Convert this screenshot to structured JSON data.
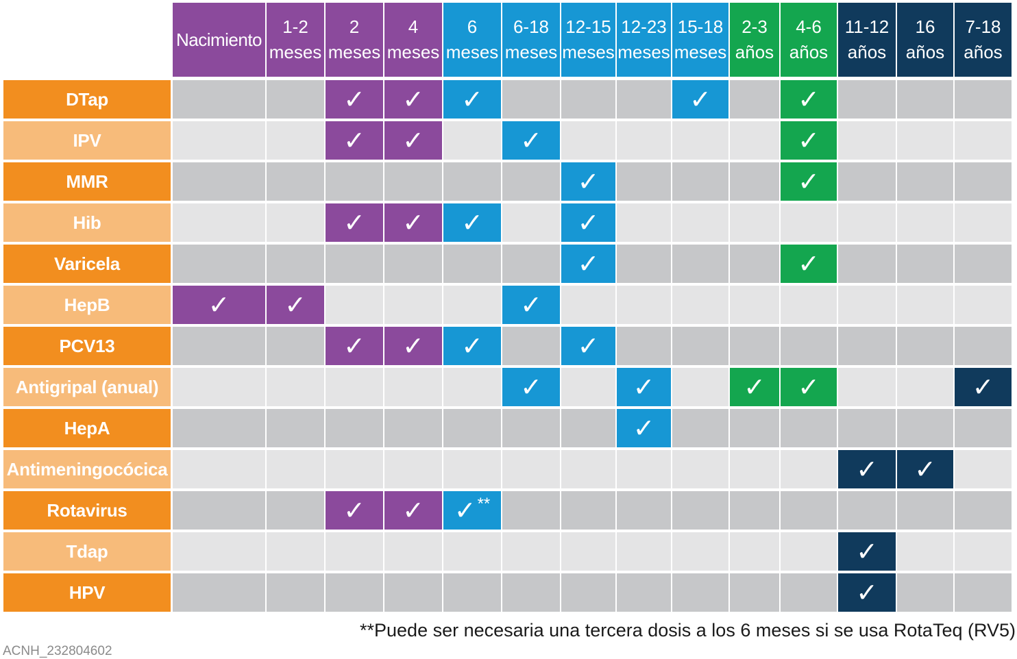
{
  "chart_data": {
    "type": "table",
    "columns": [
      {
        "lines": [
          "Nacimiento"
        ],
        "group": "purple"
      },
      {
        "lines": [
          "1-2",
          "meses"
        ],
        "group": "purple"
      },
      {
        "lines": [
          "2",
          "meses"
        ],
        "group": "purple"
      },
      {
        "lines": [
          "4",
          "meses"
        ],
        "group": "purple"
      },
      {
        "lines": [
          "6",
          "meses"
        ],
        "group": "blue"
      },
      {
        "lines": [
          "6-18",
          "meses"
        ],
        "group": "blue"
      },
      {
        "lines": [
          "12-15",
          "meses"
        ],
        "group": "blue"
      },
      {
        "lines": [
          "12-23",
          "meses"
        ],
        "group": "blue"
      },
      {
        "lines": [
          "15-18",
          "meses"
        ],
        "group": "blue"
      },
      {
        "lines": [
          "2-3",
          "años"
        ],
        "group": "green"
      },
      {
        "lines": [
          "4-6",
          "años"
        ],
        "group": "green"
      },
      {
        "lines": [
          "11-12",
          "años"
        ],
        "group": "navy"
      },
      {
        "lines": [
          "16",
          "años"
        ],
        "group": "navy"
      },
      {
        "lines": [
          "7-18",
          "años"
        ],
        "group": "navy"
      }
    ],
    "rows": [
      {
        "label": "DTap",
        "doses": [
          2,
          3,
          4,
          8,
          10
        ]
      },
      {
        "label": "IPV",
        "doses": [
          2,
          3,
          5,
          10
        ]
      },
      {
        "label": "MMR",
        "doses": [
          6,
          10
        ]
      },
      {
        "label": "Hib",
        "doses": [
          2,
          3,
          4,
          6
        ]
      },
      {
        "label": "Varicela",
        "doses": [
          6,
          10
        ]
      },
      {
        "label": "HepB",
        "doses": [
          0,
          1,
          5
        ]
      },
      {
        "label": "PCV13",
        "doses": [
          2,
          3,
          4,
          6
        ]
      },
      {
        "label": "Antigripal (anual)",
        "doses": [
          5,
          7,
          9,
          10,
          13
        ]
      },
      {
        "label": "HepA",
        "doses": [
          7
        ]
      },
      {
        "label": "Antimeningocócica",
        "doses": [
          11,
          12
        ]
      },
      {
        "label": "Rotavirus",
        "doses": [
          2,
          3,
          4
        ],
        "annotated": {
          "col": 4,
          "mark": "**"
        }
      },
      {
        "label": "Tdap",
        "doses": [
          11
        ]
      },
      {
        "label": "HPV",
        "doses": [
          11
        ]
      }
    ],
    "check_symbol": "✓",
    "footnote": "**Puede ser necesaria una tercera dosis a los 6 meses si se usa RotaTeq (RV5)"
  },
  "image_id": "ACNH_232804602",
  "colors": {
    "purple": "#8B4A9C",
    "blue": "#1797D4",
    "green": "#14A64F",
    "navy": "#103A5C",
    "row_label_dark": "#F28E1F",
    "row_label_light": "#F7BB7A",
    "cell_dark": "#C6C7C9",
    "cell_light": "#E4E4E5"
  }
}
